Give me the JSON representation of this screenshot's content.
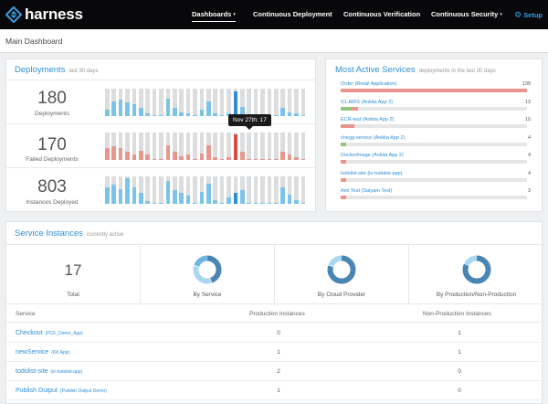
{
  "nav": {
    "logo_text": "harness",
    "items": [
      {
        "label": "Dashboards",
        "caret": "▾"
      },
      {
        "label": "Continuous Deployment",
        "caret": ""
      },
      {
        "label": "Continuous Verification",
        "caret": ""
      },
      {
        "label": "Continuous Security",
        "caret": "▾"
      }
    ],
    "setup_label": "Setup",
    "setup_icon": "gear-icon"
  },
  "page": {
    "title": "Main Dashboard"
  },
  "deployments": {
    "title": "Deployments",
    "subtitle": "last 30 days",
    "metrics": [
      {
        "value": "180",
        "label": "Deployments",
        "color": "#7cc3ea",
        "series": [
          0.25,
          0.55,
          0.6,
          0.5,
          0.45,
          0.3,
          0.1,
          0.05,
          0.05,
          0.65,
          0.3,
          0.15,
          0.1,
          0.05,
          0.25,
          0.55,
          0.1,
          0.05,
          0.1,
          0.9,
          0.35,
          0.05,
          0.05,
          0.05,
          0.05,
          0.05,
          0.3,
          0.15,
          0.1,
          0.05
        ]
      },
      {
        "value": "170",
        "label": "Failed Deployments",
        "color": "#e8978f",
        "series": [
          0.45,
          0.5,
          0.45,
          0.3,
          0.2,
          0.35,
          0.2,
          0.05,
          0.05,
          0.55,
          0.3,
          0.15,
          0.2,
          0.05,
          0.25,
          0.55,
          0.1,
          0.05,
          0.1,
          0.95,
          0.3,
          0.05,
          0.05,
          0.05,
          0.05,
          0.05,
          0.3,
          0.2,
          0.1,
          0.05
        ]
      },
      {
        "value": "803",
        "label": "Instances Deployed",
        "color": "#7cc3ea",
        "series": [
          0.6,
          0.7,
          0.55,
          0.95,
          0.6,
          0.4,
          0.1,
          0.05,
          0.05,
          0.85,
          0.5,
          0.4,
          0.3,
          0.05,
          0.45,
          0.75,
          0.15,
          0.05,
          0.25,
          0.4,
          0.5,
          0.05,
          0.05,
          0.05,
          0.05,
          0.05,
          0.6,
          0.35,
          0.15,
          0.05
        ]
      }
    ],
    "highlight_index": 19,
    "highlight_colors": [
      "#2e8fd6",
      "#d94b47",
      "#2e8fd6"
    ],
    "tooltip": "Nov 27th: 17"
  },
  "most_active": {
    "title": "Most Active Services",
    "subtitle": "deployments in the last 30 days",
    "max": 139,
    "services": [
      {
        "name": "Order (Retail Application)",
        "count": "139",
        "value": 139,
        "success": 0.0
      },
      {
        "name": "S1-AWS (Ankita App 2)",
        "count": "13",
        "value": 13,
        "success": 0.6
      },
      {
        "name": "ECR-test (Ankita App 2)",
        "count": "10",
        "value": 10,
        "success": 0.0
      },
      {
        "name": "chegg-service (Ankita App 2)",
        "count": "4",
        "value": 4,
        "success": 1.0
      },
      {
        "name": "DockerImage (Ankita App 2)",
        "count": "4",
        "value": 4,
        "success": 0.0
      },
      {
        "name": "todolist-site (io-todolist-app)",
        "count": "4",
        "value": 4,
        "success": 0.0
      },
      {
        "name": "Ami Test (Satyam Test)",
        "count": "3",
        "value": 3,
        "success": 0.0
      }
    ]
  },
  "instances": {
    "title": "Service Instances",
    "subtitle": "currently active",
    "total_value": "17",
    "total_label": "Total",
    "donuts": [
      {
        "label": "By Service",
        "segments": [
          {
            "v": 0.45,
            "c": "#4a86b4"
          },
          {
            "v": 0.35,
            "c": "#a9d8f2"
          },
          {
            "v": 0.2,
            "c": "#6db6e4"
          }
        ]
      },
      {
        "label": "By Cloud Provider",
        "segments": [
          {
            "v": 0.8,
            "c": "#4a86b4"
          },
          {
            "v": 0.2,
            "c": "#a9d8f2"
          }
        ]
      },
      {
        "label": "By Production/Non-Production",
        "segments": [
          {
            "v": 0.82,
            "c": "#4a86b4"
          },
          {
            "v": 0.18,
            "c": "#a9d8f2"
          }
        ]
      }
    ],
    "columns": [
      "Service",
      "Production Instances",
      "Non-Production Instances"
    ],
    "rows": [
      {
        "service": "Checkout",
        "app": "(PCF_Demo_App)",
        "prod": "0",
        "nonprod": "1"
      },
      {
        "service": "newService",
        "app": "(KK App)",
        "prod": "1",
        "nonprod": "1"
      },
      {
        "service": "todolist-site",
        "app": "(io-todolist-app)",
        "prod": "2",
        "nonprod": "0"
      },
      {
        "service": "Publish Output",
        "app": "(Publish Output Demo)",
        "prod": "1",
        "nonprod": "0"
      }
    ]
  }
}
